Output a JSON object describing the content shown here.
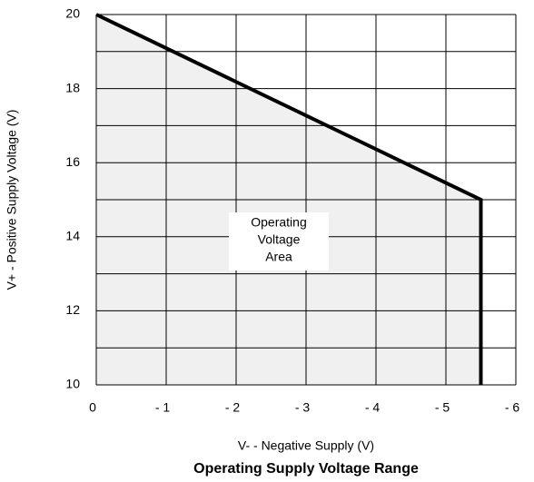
{
  "chart_data": {
    "type": "line",
    "title": "Operating Supply Voltage Range",
    "x_label": "V- - Negative Supply (V)",
    "y_label": "V+ - Positive Supply Voltage (V)",
    "annotation": [
      "Operating",
      "Voltage",
      "Area"
    ],
    "x": [
      0,
      -5.5,
      -5.5
    ],
    "series": [
      {
        "color": "#000000",
        "fill": "#f0f0f0",
        "values": [
          20,
          15,
          10
        ]
      }
    ],
    "xlim": [
      0,
      -6
    ],
    "xticks": [
      0,
      {
        "value": -1,
        "label": "- 1"
      },
      {
        "value": -2,
        "label": "- 2"
      },
      {
        "value": -3,
        "label": "- 3"
      },
      {
        "value": -4,
        "label": "- 4"
      },
      {
        "value": -5,
        "label": "- 5"
      },
      {
        "value": -6,
        "label": "- 6"
      }
    ],
    "ylim": [
      10,
      20
    ],
    "yticks": [
      10,
      12,
      14,
      16,
      18,
      20
    ],
    "minor_yticks": [
      11,
      13,
      15,
      17,
      19
    ],
    "grid": true
  }
}
